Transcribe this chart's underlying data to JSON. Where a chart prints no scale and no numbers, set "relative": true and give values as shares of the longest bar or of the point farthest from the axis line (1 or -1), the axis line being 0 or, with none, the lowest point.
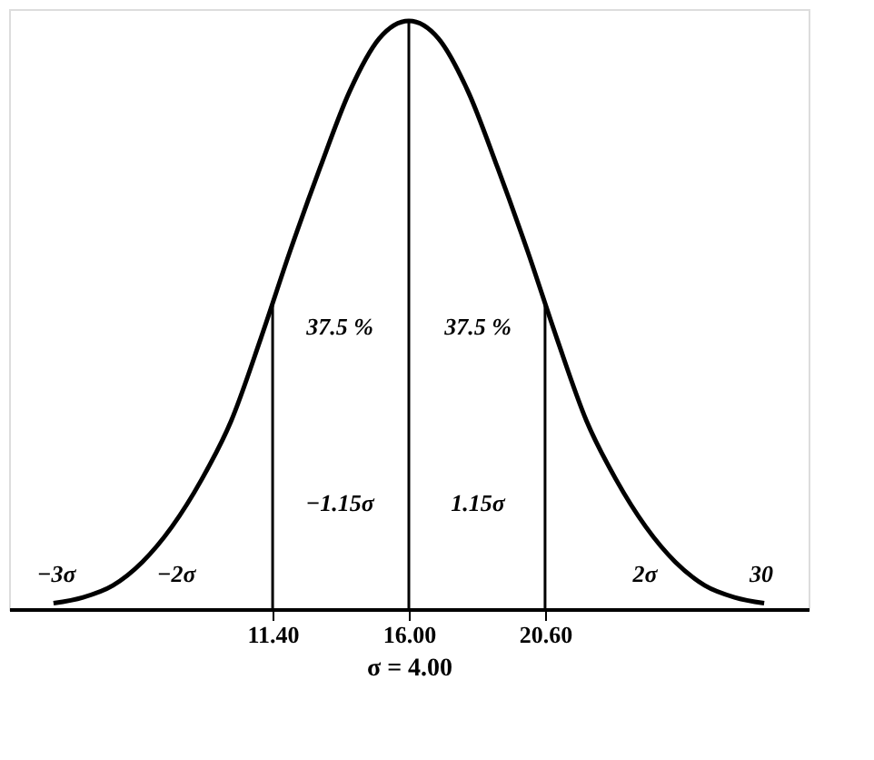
{
  "chart_data": {
    "type": "line",
    "relative": true,
    "xlabel": "σ = 4.00",
    "x": [
      4,
      5,
      6,
      7,
      8,
      9,
      10,
      11,
      12,
      13,
      14,
      15,
      16,
      17,
      18,
      19,
      20,
      21,
      22,
      23,
      24,
      25,
      26,
      27,
      28
    ],
    "series": [
      {
        "color": "#000000",
        "values": [
          0.01,
          0.02,
          0.04,
          0.08,
          0.14,
          0.22,
          0.32,
          0.46,
          0.61,
          0.75,
          0.88,
          0.97,
          1,
          0.97,
          0.88,
          0.75,
          0.61,
          0.46,
          0.32,
          0.22,
          0.14,
          0.08,
          0.04,
          0.02,
          0.01
        ]
      }
    ],
    "xlim": [
      2.5,
      29.5
    ],
    "xticks": [
      {
        "value": 11.4,
        "label": "11.40"
      },
      {
        "value": 16,
        "label": "16.00"
      },
      {
        "value": 20.6,
        "label": "20.60"
      }
    ],
    "ref_lines": [
      {
        "axis": "x",
        "value": 11.4
      },
      {
        "axis": "x",
        "value": 16
      },
      {
        "axis": "x",
        "value": 20.6
      }
    ],
    "annotations": [
      "37.5 %",
      "37.5 %",
      "−1.15σ",
      "1.15σ",
      "−3σ",
      "−2σ",
      "2σ",
      "30"
    ],
    "grid": false,
    "marker": "none",
    "line_style": "solid"
  }
}
